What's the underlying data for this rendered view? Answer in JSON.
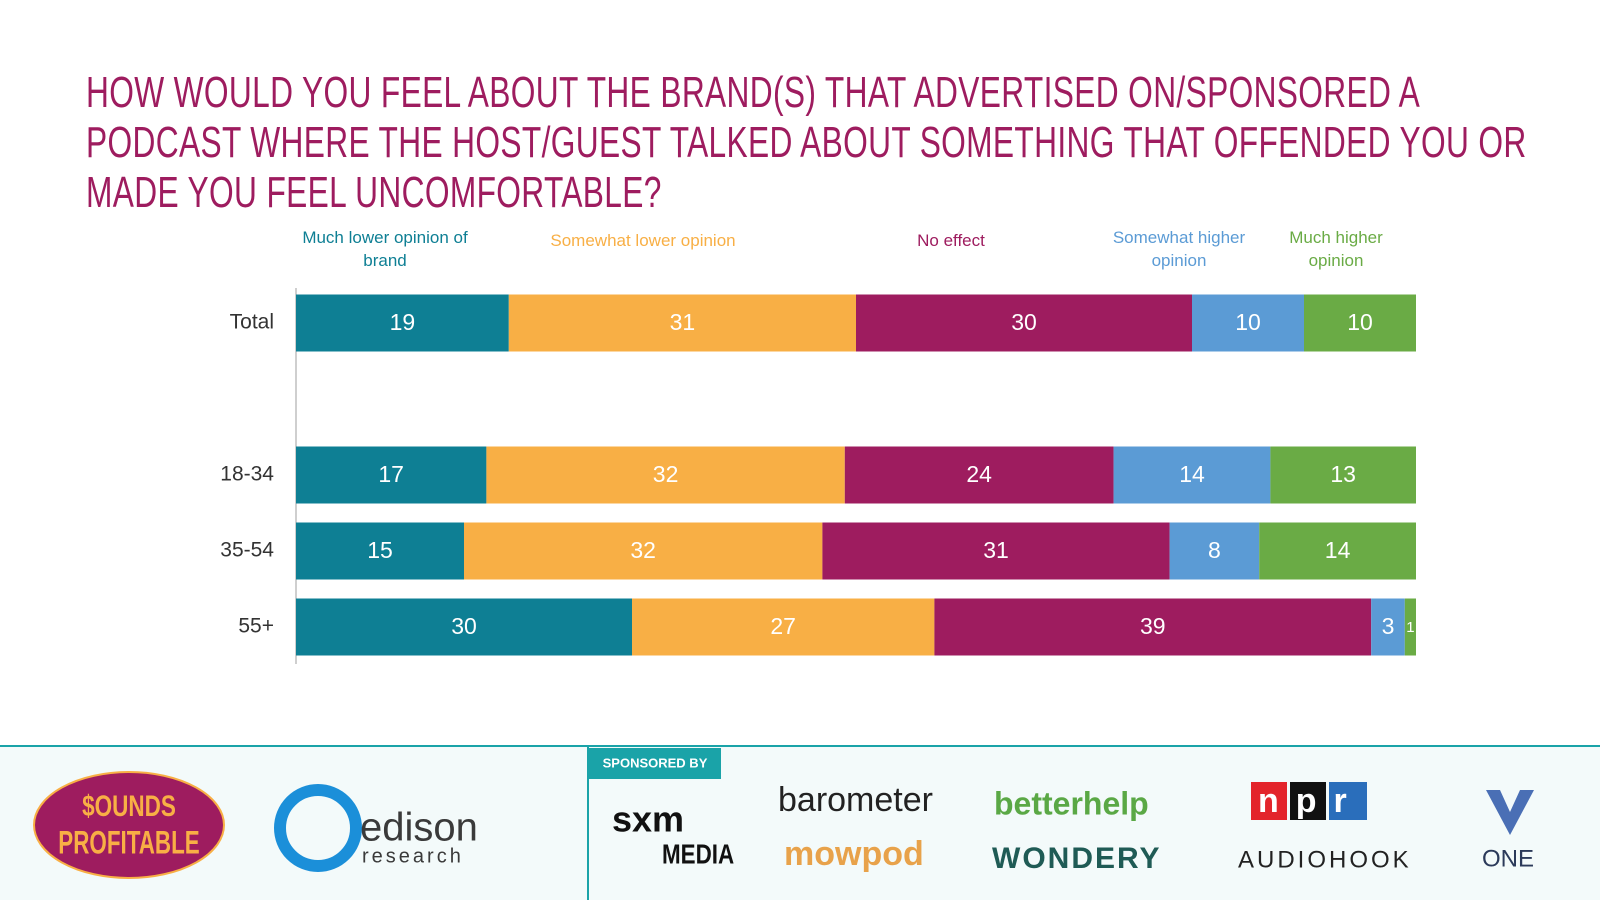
{
  "chart_data": {
    "type": "stacked-barh",
    "title": "HOW WOULD YOU FEEL ABOUT THE BRAND(S) THAT ADVERTISED ON/SPONSORED A PODCAST WHERE THE HOST/GUEST TALKED ABOUT SOMETHING THAT OFFENDED YOU OR MADE YOU FEEL UNCOMFORTABLE?",
    "categories": [
      "Total",
      null,
      "18-34",
      "35-54",
      "55+"
    ],
    "xlim": [
      0,
      100
    ],
    "series": [
      {
        "name": "Much lower opinion of brand",
        "color": "#0e7f94",
        "values": [
          19,
          null,
          17,
          15,
          30
        ]
      },
      {
        "name": "Somewhat lower opinion",
        "color": "#f8af45",
        "values": [
          31,
          null,
          32,
          32,
          27
        ]
      },
      {
        "name": "No effect",
        "color": "#9e1c5f",
        "values": [
          30,
          null,
          24,
          31,
          39
        ]
      },
      {
        "name": "Somewhat higher opinion",
        "color": "#5b9bd5",
        "values": [
          10,
          null,
          14,
          8,
          3
        ]
      },
      {
        "name": "Much higher opinion",
        "color": "#6aab45",
        "values": [
          10,
          null,
          13,
          14,
          1
        ]
      }
    ]
  },
  "footer": {
    "sounds": [
      "$OUNDS",
      "PROFITABLE"
    ],
    "edison": [
      "edison",
      "research"
    ],
    "sponsored": "SPONSORED BY",
    "sponsors": [
      "sxm",
      "MEDIA",
      "barometer",
      "mowpod",
      "betterhelp",
      "WONDERY",
      "npr",
      "AUDIOHOOK",
      "ONE"
    ]
  }
}
